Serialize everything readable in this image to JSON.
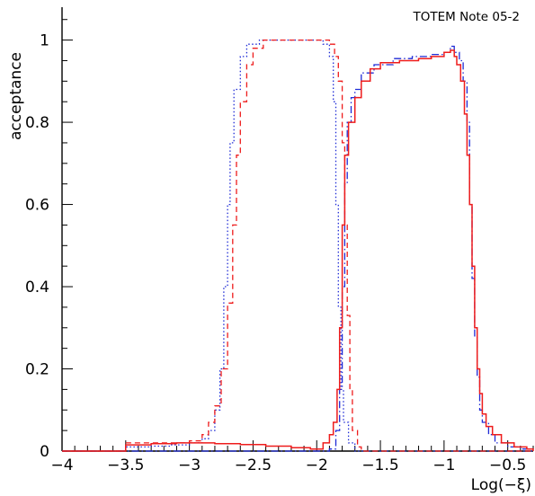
{
  "chart_data": {
    "type": "line",
    "annotation": "TOTEM Note 05-2",
    "xlabel": "Log(−ξ)",
    "ylabel": "acceptance",
    "xlim": [
      -4,
      -0.3
    ],
    "ylim": [
      0,
      1.08
    ],
    "x_ticks": [
      "−4",
      "−3.5",
      "−3",
      "−2.5",
      "−2",
      "−1.5",
      "−1",
      "−0.5"
    ],
    "x_tick_values": [
      -4,
      -3.5,
      -3,
      -2.5,
      -2,
      -1.5,
      -1,
      -0.5
    ],
    "y_ticks": [
      "0",
      "0.2",
      "0.4",
      "0.6",
      "0.8",
      "1"
    ],
    "y_tick_values": [
      0,
      0.2,
      0.4,
      0.6,
      0.8,
      1.0
    ],
    "grid": false,
    "series": [
      {
        "style": "dotted",
        "color": "#1f2bd6",
        "points": [
          [
            -4.0,
            0
          ],
          [
            -3.5,
            0
          ],
          [
            -3.5,
            0.01
          ],
          [
            -3.3,
            0.012
          ],
          [
            -3.15,
            0.015
          ],
          [
            -3.0,
            0.02
          ],
          [
            -2.9,
            0.03
          ],
          [
            -2.85,
            0.05
          ],
          [
            -2.8,
            0.1
          ],
          [
            -2.76,
            0.2
          ],
          [
            -2.73,
            0.4
          ],
          [
            -2.7,
            0.6
          ],
          [
            -2.68,
            0.75
          ],
          [
            -2.65,
            0.88
          ],
          [
            -2.6,
            0.96
          ],
          [
            -2.55,
            0.99
          ],
          [
            -2.45,
            1.0
          ],
          [
            -2.0,
            1.0
          ],
          [
            -1.95,
            0.99
          ],
          [
            -1.9,
            0.96
          ],
          [
            -1.87,
            0.85
          ],
          [
            -1.85,
            0.6
          ],
          [
            -1.83,
            0.35
          ],
          [
            -1.81,
            0.15
          ],
          [
            -1.79,
            0.07
          ],
          [
            -1.75,
            0.02
          ],
          [
            -1.7,
            0
          ],
          [
            -0.3,
            0
          ]
        ]
      },
      {
        "style": "dashed",
        "color": "#ee1c1c",
        "points": [
          [
            -4.0,
            0
          ],
          [
            -3.5,
            0
          ],
          [
            -3.5,
            0.02
          ],
          [
            -3.3,
            0.02
          ],
          [
            -3.1,
            0.02
          ],
          [
            -3.0,
            0.025
          ],
          [
            -2.9,
            0.04
          ],
          [
            -2.85,
            0.07
          ],
          [
            -2.8,
            0.11
          ],
          [
            -2.75,
            0.2
          ],
          [
            -2.7,
            0.36
          ],
          [
            -2.66,
            0.55
          ],
          [
            -2.63,
            0.72
          ],
          [
            -2.6,
            0.85
          ],
          [
            -2.55,
            0.94
          ],
          [
            -2.5,
            0.98
          ],
          [
            -2.42,
            1.0
          ],
          [
            -1.95,
            1.0
          ],
          [
            -1.9,
            0.99
          ],
          [
            -1.86,
            0.96
          ],
          [
            -1.83,
            0.9
          ],
          [
            -1.8,
            0.75
          ],
          [
            -1.78,
            0.55
          ],
          [
            -1.76,
            0.33
          ],
          [
            -1.74,
            0.15
          ],
          [
            -1.72,
            0.05
          ],
          [
            -1.68,
            0.01
          ],
          [
            -1.65,
            0
          ],
          [
            -0.3,
            0
          ]
        ]
      },
      {
        "style": "dash-dot",
        "color": "#1f2bd6",
        "points": [
          [
            -4.0,
            0
          ],
          [
            -2.0,
            0
          ],
          [
            -1.9,
            0.005
          ],
          [
            -1.85,
            0.05
          ],
          [
            -1.82,
            0.15
          ],
          [
            -1.8,
            0.4
          ],
          [
            -1.78,
            0.65
          ],
          [
            -1.76,
            0.8
          ],
          [
            -1.73,
            0.86
          ],
          [
            -1.7,
            0.88
          ],
          [
            -1.65,
            0.92
          ],
          [
            -1.55,
            0.94
          ],
          [
            -1.4,
            0.955
          ],
          [
            -1.25,
            0.96
          ],
          [
            -1.1,
            0.965
          ],
          [
            -1.0,
            0.97
          ],
          [
            -0.95,
            0.985
          ],
          [
            -0.92,
            0.97
          ],
          [
            -0.88,
            0.95
          ],
          [
            -0.85,
            0.9
          ],
          [
            -0.82,
            0.8
          ],
          [
            -0.8,
            0.6
          ],
          [
            -0.78,
            0.42
          ],
          [
            -0.76,
            0.28
          ],
          [
            -0.74,
            0.18
          ],
          [
            -0.72,
            0.1
          ],
          [
            -0.7,
            0.07
          ],
          [
            -0.65,
            0.04
          ],
          [
            -0.6,
            0.02
          ],
          [
            -0.5,
            0.01
          ],
          [
            -0.4,
            0.005
          ],
          [
            -0.3,
            0
          ]
        ]
      },
      {
        "style": "solid",
        "color": "#ee1c1c",
        "points": [
          [
            -4.0,
            0
          ],
          [
            -3.5,
            0
          ],
          [
            -3.5,
            0.015
          ],
          [
            -3.3,
            0.018
          ],
          [
            -3.1,
            0.02
          ],
          [
            -2.8,
            0.018
          ],
          [
            -2.6,
            0.016
          ],
          [
            -2.4,
            0.012
          ],
          [
            -2.2,
            0.008
          ],
          [
            -2.05,
            0.005
          ],
          [
            -1.95,
            0.02
          ],
          [
            -1.9,
            0.04
          ],
          [
            -1.87,
            0.07
          ],
          [
            -1.84,
            0.15
          ],
          [
            -1.82,
            0.3
          ],
          [
            -1.8,
            0.55
          ],
          [
            -1.78,
            0.72
          ],
          [
            -1.75,
            0.8
          ],
          [
            -1.7,
            0.86
          ],
          [
            -1.65,
            0.9
          ],
          [
            -1.58,
            0.93
          ],
          [
            -1.5,
            0.945
          ],
          [
            -1.35,
            0.95
          ],
          [
            -1.2,
            0.955
          ],
          [
            -1.1,
            0.96
          ],
          [
            -1.0,
            0.97
          ],
          [
            -0.95,
            0.975
          ],
          [
            -0.92,
            0.96
          ],
          [
            -0.9,
            0.94
          ],
          [
            -0.87,
            0.9
          ],
          [
            -0.84,
            0.82
          ],
          [
            -0.82,
            0.72
          ],
          [
            -0.8,
            0.6
          ],
          [
            -0.78,
            0.45
          ],
          [
            -0.76,
            0.3
          ],
          [
            -0.74,
            0.2
          ],
          [
            -0.72,
            0.14
          ],
          [
            -0.7,
            0.09
          ],
          [
            -0.67,
            0.06
          ],
          [
            -0.62,
            0.04
          ],
          [
            -0.55,
            0.02
          ],
          [
            -0.45,
            0.01
          ],
          [
            -0.35,
            0.005
          ],
          [
            -0.3,
            0
          ]
        ]
      }
    ]
  }
}
